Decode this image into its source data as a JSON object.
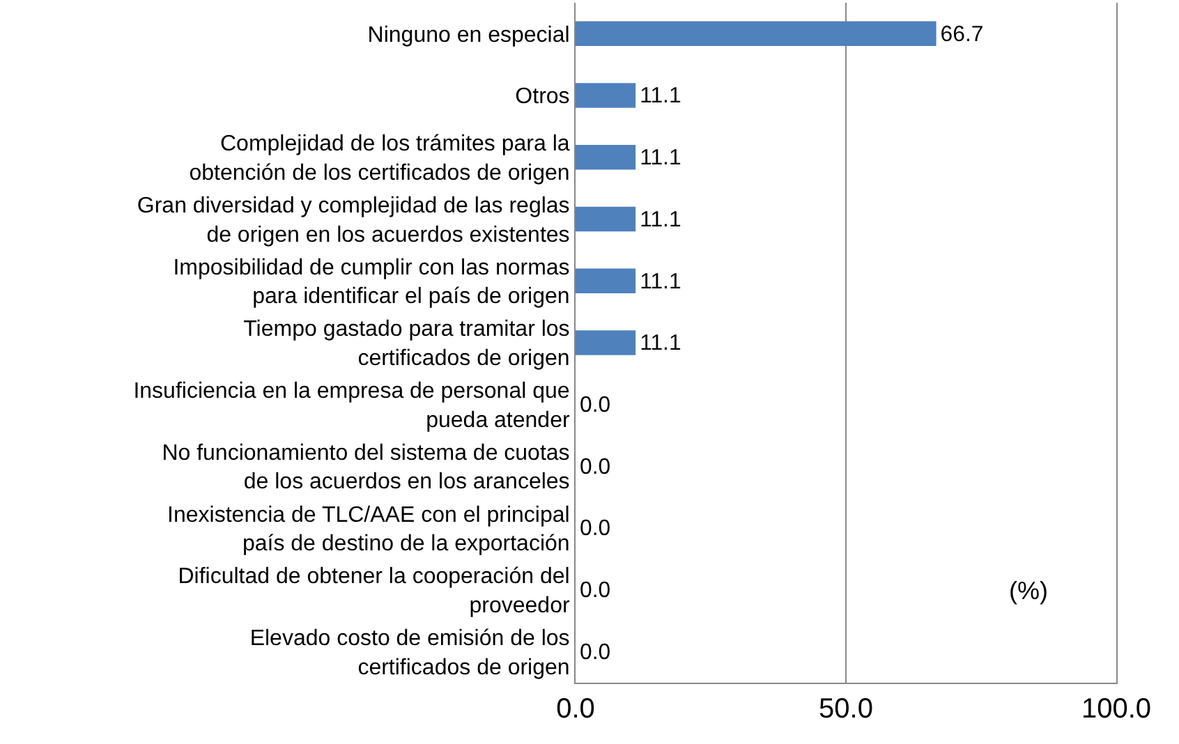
{
  "chart_data": {
    "type": "bar",
    "orientation": "horizontal",
    "categories": [
      "Ninguno en especial",
      "Otros",
      "Complejidad de los trámites para la\nobtención de los certificados de origen",
      "Gran diversidad y complejidad de las reglas\nde origen en los acuerdos existentes",
      "Imposibilidad de cumplir con las normas\npara identificar el país de origen",
      "Tiempo gastado para tramitar los\ncertificados de origen",
      "Insuficiencia en la empresa de personal que\npueda atender",
      "No funcionamiento del sistema de cuotas\nde los acuerdos en los aranceles",
      "Inexistencia de TLC/AAE con el principal\npaís de destino de la exportación",
      "Dificultad de obtener la cooperación del\nproveedor",
      "Elevado costo de emisión de los\ncertificados de origen"
    ],
    "values": [
      66.7,
      11.1,
      11.1,
      11.1,
      11.1,
      11.1,
      0,
      0,
      0,
      0,
      0
    ],
    "value_labels": [
      "66.7",
      "11.1",
      "11.1",
      "11.1",
      "11.1",
      "11.1",
      "0.0",
      "0.0",
      "0.0",
      "0.0",
      "0.0"
    ],
    "color": "#4f81bd",
    "xlim": [
      0,
      100
    ],
    "xticks": [
      {
        "value": 0,
        "label": "0.0"
      },
      {
        "value": 50,
        "label": "50.0"
      },
      {
        "value": 100,
        "label": "100.0"
      }
    ],
    "grid": "x",
    "legend": false,
    "annotations": [
      "(%)"
    ]
  }
}
